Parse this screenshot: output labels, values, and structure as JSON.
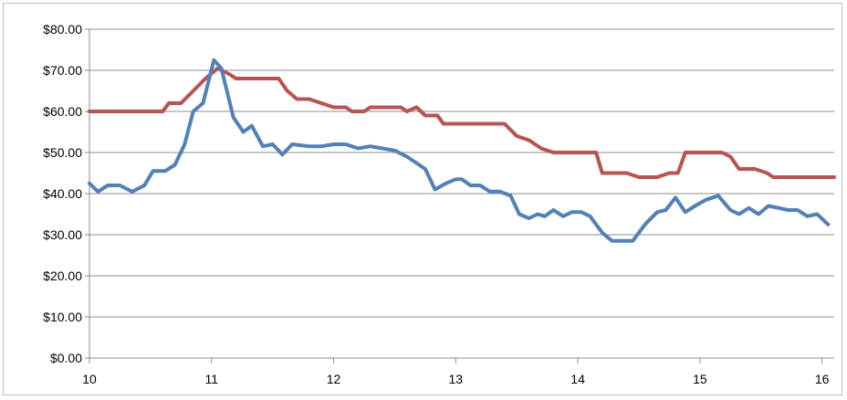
{
  "chart_data": {
    "type": "line",
    "title": "",
    "xlabel": "",
    "ylabel": "",
    "xlim": [
      10,
      16.1
    ],
    "ylim": [
      0,
      80
    ],
    "x_ticks": [
      {
        "value": 10,
        "label": "10"
      },
      {
        "value": 11,
        "label": "11"
      },
      {
        "value": 12,
        "label": "12"
      },
      {
        "value": 13,
        "label": "13"
      },
      {
        "value": 14,
        "label": "14"
      },
      {
        "value": 15,
        "label": "15"
      },
      {
        "value": 16,
        "label": "16"
      }
    ],
    "y_ticks": [
      {
        "value": 0,
        "label": "$0.00"
      },
      {
        "value": 10,
        "label": "$10.00"
      },
      {
        "value": 20,
        "label": "$20.00"
      },
      {
        "value": 30,
        "label": "$30.00"
      },
      {
        "value": 40,
        "label": "$40.00"
      },
      {
        "value": 50,
        "label": "$50.00"
      },
      {
        "value": 60,
        "label": "$60.00"
      },
      {
        "value": 70,
        "label": "$70.00"
      },
      {
        "value": 80,
        "label": "$80.00"
      }
    ],
    "grid": true,
    "legend": "none",
    "series": [
      {
        "color": "#c0504d",
        "points": [
          [
            10.0,
            60
          ],
          [
            10.6,
            60
          ],
          [
            10.65,
            62
          ],
          [
            10.75,
            62
          ],
          [
            10.85,
            65
          ],
          [
            10.95,
            68
          ],
          [
            11.05,
            70.5
          ],
          [
            11.15,
            69
          ],
          [
            11.2,
            68
          ],
          [
            11.55,
            68
          ],
          [
            11.62,
            65
          ],
          [
            11.7,
            63
          ],
          [
            11.8,
            63
          ],
          [
            11.9,
            62
          ],
          [
            12.0,
            61
          ],
          [
            12.1,
            61
          ],
          [
            12.15,
            60
          ],
          [
            12.25,
            60
          ],
          [
            12.3,
            61
          ],
          [
            12.55,
            61
          ],
          [
            12.6,
            60
          ],
          [
            12.68,
            61
          ],
          [
            12.75,
            59
          ],
          [
            12.85,
            59
          ],
          [
            12.9,
            57
          ],
          [
            13.4,
            57
          ],
          [
            13.5,
            54
          ],
          [
            13.6,
            53
          ],
          [
            13.7,
            51
          ],
          [
            13.8,
            50
          ],
          [
            14.15,
            50
          ],
          [
            14.2,
            45
          ],
          [
            14.4,
            45
          ],
          [
            14.5,
            44
          ],
          [
            14.65,
            44
          ],
          [
            14.75,
            45
          ],
          [
            14.82,
            45
          ],
          [
            14.88,
            50
          ],
          [
            15.18,
            50
          ],
          [
            15.25,
            49
          ],
          [
            15.32,
            46
          ],
          [
            15.45,
            46
          ],
          [
            15.55,
            45
          ],
          [
            15.6,
            44
          ],
          [
            16.1,
            44
          ]
        ]
      },
      {
        "color": "#4f81bd",
        "points": [
          [
            10.0,
            42.5
          ],
          [
            10.07,
            40.5
          ],
          [
            10.15,
            42
          ],
          [
            10.25,
            42
          ],
          [
            10.35,
            40.5
          ],
          [
            10.45,
            42
          ],
          [
            10.52,
            45.5
          ],
          [
            10.62,
            45.5
          ],
          [
            10.7,
            47
          ],
          [
            10.78,
            52
          ],
          [
            10.85,
            60
          ],
          [
            10.93,
            62
          ],
          [
            11.02,
            72.5
          ],
          [
            11.08,
            70.5
          ],
          [
            11.18,
            58.5
          ],
          [
            11.26,
            55
          ],
          [
            11.33,
            56.5
          ],
          [
            11.42,
            51.5
          ],
          [
            11.5,
            52
          ],
          [
            11.58,
            49.5
          ],
          [
            11.66,
            52
          ],
          [
            11.8,
            51.5
          ],
          [
            11.9,
            51.5
          ],
          [
            12.0,
            52
          ],
          [
            12.1,
            52
          ],
          [
            12.2,
            51
          ],
          [
            12.3,
            51.5
          ],
          [
            12.4,
            51
          ],
          [
            12.5,
            50.5
          ],
          [
            12.6,
            49
          ],
          [
            12.7,
            47
          ],
          [
            12.75,
            46
          ],
          [
            12.83,
            41
          ],
          [
            12.92,
            42.5
          ],
          [
            13.0,
            43.5
          ],
          [
            13.05,
            43.5
          ],
          [
            13.12,
            42
          ],
          [
            13.2,
            42
          ],
          [
            13.28,
            40.5
          ],
          [
            13.36,
            40.5
          ],
          [
            13.45,
            39.5
          ],
          [
            13.52,
            35
          ],
          [
            13.6,
            34
          ],
          [
            13.67,
            35
          ],
          [
            13.73,
            34.5
          ],
          [
            13.8,
            36
          ],
          [
            13.88,
            34.5
          ],
          [
            13.95,
            35.5
          ],
          [
            14.03,
            35.5
          ],
          [
            14.1,
            34.5
          ],
          [
            14.2,
            30.5
          ],
          [
            14.28,
            28.5
          ],
          [
            14.36,
            28.5
          ],
          [
            14.45,
            28.5
          ],
          [
            14.55,
            32.5
          ],
          [
            14.65,
            35.5
          ],
          [
            14.72,
            36
          ],
          [
            14.8,
            39
          ],
          [
            14.88,
            35.5
          ],
          [
            14.96,
            37
          ],
          [
            15.05,
            38.5
          ],
          [
            15.15,
            39.5
          ],
          [
            15.25,
            36
          ],
          [
            15.32,
            35
          ],
          [
            15.4,
            36.5
          ],
          [
            15.48,
            35
          ],
          [
            15.56,
            37
          ],
          [
            15.65,
            36.5
          ],
          [
            15.72,
            36
          ],
          [
            15.8,
            36
          ],
          [
            15.88,
            34.5
          ],
          [
            15.96,
            35
          ],
          [
            16.05,
            32.5
          ]
        ]
      }
    ]
  }
}
